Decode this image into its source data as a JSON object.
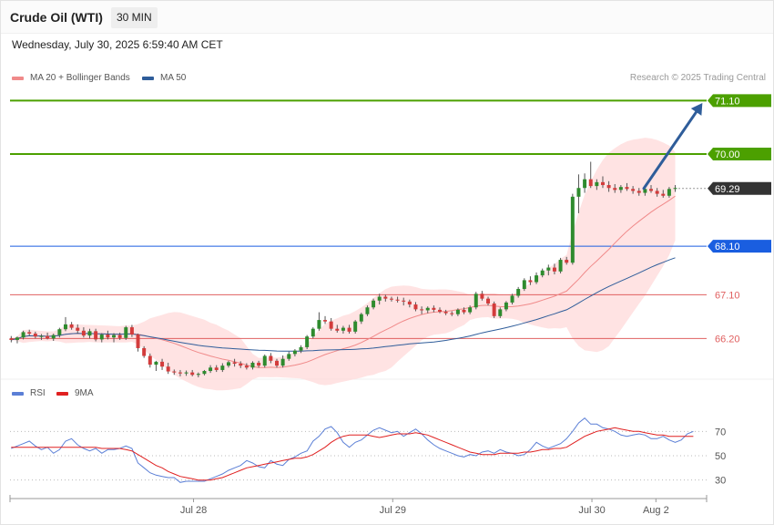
{
  "header": {
    "title": "Crude Oil (WTI)",
    "timeframe": "30 MIN"
  },
  "datetime": "Wednesday, July 30, 2025 6:59:40 AM CET",
  "copyright": "Research © 2025 Trading Central",
  "legend": {
    "main": [
      {
        "label": "MA 20 + Bollinger Bands",
        "color": "#f08a8a"
      },
      {
        "label": "MA 50",
        "color": "#2f5d9a"
      }
    ],
    "rsi": [
      {
        "label": "RSI",
        "color": "#5b7fd6"
      },
      {
        "label": "9MA",
        "color": "#e02020"
      }
    ]
  },
  "chart_data": [
    {
      "type": "candlestick",
      "instrument": "Crude Oil (WTI)",
      "interval": "30 MIN",
      "ylim": [
        65.38,
        71.37
      ],
      "xlim": [
        -0.2,
        115.2
      ],
      "x_ticks": [
        {
          "label": "Jul 28",
          "x": 30.2
        },
        {
          "label": "Jul 29",
          "x": 63.2
        },
        {
          "label": "Jul 30",
          "x": 96.2
        },
        {
          "label": "Aug 2",
          "x": 106.8
        }
      ],
      "last_price": 69.29,
      "levels": [
        {
          "label": "71.10",
          "value": 71.1,
          "color": "#4ca000",
          "kind": "resistance"
        },
        {
          "label": "70.00",
          "value": 70.0,
          "color": "#4ca000",
          "kind": "resistance"
        },
        {
          "label": "69.29",
          "value": 69.29,
          "color": "#333333",
          "kind": "last"
        },
        {
          "label": "68.10",
          "value": 68.1,
          "color": "#1a5ee0",
          "kind": "pivot"
        },
        {
          "label": "67.10",
          "value": 67.1,
          "color": "#e06060",
          "kind": "support"
        },
        {
          "label": "66.20",
          "value": 66.2,
          "color": "#e06060",
          "kind": "support"
        }
      ],
      "target_arrow": {
        "from": [
          104.8,
          69.29
        ],
        "to": [
          114.5,
          71.05
        ],
        "color": "#2f5d9a"
      },
      "candles": [
        {
          "o": 66.2,
          "h": 66.25,
          "l": 66.12,
          "c": 66.17
        },
        {
          "o": 66.17,
          "h": 66.24,
          "l": 66.1,
          "c": 66.22
        },
        {
          "o": 66.22,
          "h": 66.36,
          "l": 66.18,
          "c": 66.33
        },
        {
          "o": 66.33,
          "h": 66.38,
          "l": 66.26,
          "c": 66.3
        },
        {
          "o": 66.3,
          "h": 66.34,
          "l": 66.2,
          "c": 66.24
        },
        {
          "o": 66.24,
          "h": 66.29,
          "l": 66.17,
          "c": 66.25
        },
        {
          "o": 66.25,
          "h": 66.32,
          "l": 66.18,
          "c": 66.2
        },
        {
          "o": 66.2,
          "h": 66.3,
          "l": 66.15,
          "c": 66.27
        },
        {
          "o": 66.27,
          "h": 66.42,
          "l": 66.22,
          "c": 66.39
        },
        {
          "o": 66.39,
          "h": 66.64,
          "l": 66.35,
          "c": 66.49
        },
        {
          "o": 66.49,
          "h": 66.54,
          "l": 66.38,
          "c": 66.42
        },
        {
          "o": 66.42,
          "h": 66.49,
          "l": 66.3,
          "c": 66.36
        },
        {
          "o": 66.36,
          "h": 66.43,
          "l": 66.22,
          "c": 66.26
        },
        {
          "o": 66.26,
          "h": 66.4,
          "l": 66.2,
          "c": 66.35
        },
        {
          "o": 66.35,
          "h": 66.4,
          "l": 66.14,
          "c": 66.18
        },
        {
          "o": 66.18,
          "h": 66.31,
          "l": 66.12,
          "c": 66.28
        },
        {
          "o": 66.28,
          "h": 66.36,
          "l": 66.18,
          "c": 66.22
        },
        {
          "o": 66.22,
          "h": 66.31,
          "l": 66.12,
          "c": 66.27
        },
        {
          "o": 66.27,
          "h": 66.32,
          "l": 66.17,
          "c": 66.21
        },
        {
          "o": 66.21,
          "h": 66.46,
          "l": 66.17,
          "c": 66.43
        },
        {
          "o": 66.43,
          "h": 66.48,
          "l": 66.23,
          "c": 66.28
        },
        {
          "o": 66.28,
          "h": 66.3,
          "l": 65.93,
          "c": 66.0
        },
        {
          "o": 66.0,
          "h": 66.04,
          "l": 65.8,
          "c": 65.84
        },
        {
          "o": 65.84,
          "h": 65.89,
          "l": 65.6,
          "c": 65.66
        },
        {
          "o": 65.66,
          "h": 65.74,
          "l": 65.53,
          "c": 65.72
        },
        {
          "o": 65.72,
          "h": 65.78,
          "l": 65.55,
          "c": 65.62
        },
        {
          "o": 65.62,
          "h": 65.7,
          "l": 65.47,
          "c": 65.52
        },
        {
          "o": 65.52,
          "h": 65.56,
          "l": 65.45,
          "c": 65.5
        },
        {
          "o": 65.5,
          "h": 65.55,
          "l": 65.42,
          "c": 65.48
        },
        {
          "o": 65.48,
          "h": 65.54,
          "l": 65.43,
          "c": 65.5
        },
        {
          "o": 65.5,
          "h": 65.55,
          "l": 65.42,
          "c": 65.45
        },
        {
          "o": 65.45,
          "h": 65.5,
          "l": 65.4,
          "c": 65.47
        },
        {
          "o": 65.47,
          "h": 65.55,
          "l": 65.44,
          "c": 65.53
        },
        {
          "o": 65.53,
          "h": 65.65,
          "l": 65.49,
          "c": 65.6
        },
        {
          "o": 65.6,
          "h": 65.65,
          "l": 65.51,
          "c": 65.55
        },
        {
          "o": 65.55,
          "h": 65.69,
          "l": 65.51,
          "c": 65.64
        },
        {
          "o": 65.64,
          "h": 65.74,
          "l": 65.6,
          "c": 65.71
        },
        {
          "o": 65.71,
          "h": 65.78,
          "l": 65.62,
          "c": 65.68
        },
        {
          "o": 65.68,
          "h": 65.73,
          "l": 65.59,
          "c": 65.64
        },
        {
          "o": 65.64,
          "h": 65.69,
          "l": 65.56,
          "c": 65.6
        },
        {
          "o": 65.6,
          "h": 65.73,
          "l": 65.56,
          "c": 65.7
        },
        {
          "o": 65.7,
          "h": 65.74,
          "l": 65.6,
          "c": 65.64
        },
        {
          "o": 65.64,
          "h": 65.87,
          "l": 65.6,
          "c": 65.84
        },
        {
          "o": 65.84,
          "h": 65.9,
          "l": 65.69,
          "c": 65.74
        },
        {
          "o": 65.74,
          "h": 65.78,
          "l": 65.6,
          "c": 65.64
        },
        {
          "o": 65.64,
          "h": 65.85,
          "l": 65.6,
          "c": 65.78
        },
        {
          "o": 65.78,
          "h": 65.93,
          "l": 65.74,
          "c": 65.88
        },
        {
          "o": 65.88,
          "h": 65.98,
          "l": 65.83,
          "c": 65.95
        },
        {
          "o": 65.95,
          "h": 66.06,
          "l": 65.9,
          "c": 66.02
        },
        {
          "o": 66.02,
          "h": 66.27,
          "l": 65.98,
          "c": 66.24
        },
        {
          "o": 66.24,
          "h": 66.43,
          "l": 66.2,
          "c": 66.4
        },
        {
          "o": 66.4,
          "h": 66.74,
          "l": 66.36,
          "c": 66.58
        },
        {
          "o": 66.58,
          "h": 66.66,
          "l": 66.5,
          "c": 66.55
        },
        {
          "o": 66.55,
          "h": 66.62,
          "l": 66.36,
          "c": 66.4
        },
        {
          "o": 66.4,
          "h": 66.48,
          "l": 66.32,
          "c": 66.36
        },
        {
          "o": 66.36,
          "h": 66.46,
          "l": 66.3,
          "c": 66.42
        },
        {
          "o": 66.42,
          "h": 66.48,
          "l": 66.3,
          "c": 66.34
        },
        {
          "o": 66.34,
          "h": 66.58,
          "l": 66.3,
          "c": 66.55
        },
        {
          "o": 66.55,
          "h": 66.73,
          "l": 66.5,
          "c": 66.7
        },
        {
          "o": 66.7,
          "h": 66.88,
          "l": 66.66,
          "c": 66.84
        },
        {
          "o": 66.84,
          "h": 67.02,
          "l": 66.8,
          "c": 66.98
        },
        {
          "o": 66.98,
          "h": 67.12,
          "l": 66.9,
          "c": 67.06
        },
        {
          "o": 67.06,
          "h": 67.1,
          "l": 66.96,
          "c": 67.02
        },
        {
          "o": 67.02,
          "h": 67.06,
          "l": 66.96,
          "c": 67.0
        },
        {
          "o": 67.0,
          "h": 67.06,
          "l": 66.94,
          "c": 66.98
        },
        {
          "o": 66.98,
          "h": 67.04,
          "l": 66.88,
          "c": 66.96
        },
        {
          "o": 66.96,
          "h": 67.0,
          "l": 66.84,
          "c": 66.9
        },
        {
          "o": 66.9,
          "h": 66.95,
          "l": 66.76,
          "c": 66.8
        },
        {
          "o": 66.8,
          "h": 66.86,
          "l": 66.7,
          "c": 66.78
        },
        {
          "o": 66.78,
          "h": 66.86,
          "l": 66.72,
          "c": 66.83
        },
        {
          "o": 66.83,
          "h": 66.88,
          "l": 66.74,
          "c": 66.79
        },
        {
          "o": 66.79,
          "h": 66.84,
          "l": 66.72,
          "c": 66.75
        },
        {
          "o": 66.75,
          "h": 66.79,
          "l": 66.68,
          "c": 66.72
        },
        {
          "o": 66.72,
          "h": 66.76,
          "l": 66.66,
          "c": 66.7
        },
        {
          "o": 66.7,
          "h": 66.82,
          "l": 66.66,
          "c": 66.79
        },
        {
          "o": 66.79,
          "h": 66.84,
          "l": 66.7,
          "c": 66.74
        },
        {
          "o": 66.74,
          "h": 66.88,
          "l": 66.7,
          "c": 66.84
        },
        {
          "o": 66.84,
          "h": 67.16,
          "l": 66.8,
          "c": 67.12
        },
        {
          "o": 67.12,
          "h": 67.18,
          "l": 66.98,
          "c": 67.02
        },
        {
          "o": 67.02,
          "h": 67.06,
          "l": 66.88,
          "c": 66.92
        },
        {
          "o": 66.92,
          "h": 66.96,
          "l": 66.62,
          "c": 66.66
        },
        {
          "o": 66.66,
          "h": 66.84,
          "l": 66.62,
          "c": 66.8
        },
        {
          "o": 66.8,
          "h": 66.97,
          "l": 66.76,
          "c": 66.94
        },
        {
          "o": 66.94,
          "h": 67.12,
          "l": 66.9,
          "c": 67.08
        },
        {
          "o": 67.08,
          "h": 67.26,
          "l": 67.04,
          "c": 67.22
        },
        {
          "o": 67.22,
          "h": 67.44,
          "l": 67.18,
          "c": 67.4
        },
        {
          "o": 67.4,
          "h": 67.48,
          "l": 67.3,
          "c": 67.36
        },
        {
          "o": 67.36,
          "h": 67.56,
          "l": 67.32,
          "c": 67.5
        },
        {
          "o": 67.5,
          "h": 67.64,
          "l": 67.46,
          "c": 67.6
        },
        {
          "o": 67.6,
          "h": 67.72,
          "l": 67.5,
          "c": 67.66
        },
        {
          "o": 67.66,
          "h": 67.74,
          "l": 67.52,
          "c": 67.58
        },
        {
          "o": 67.58,
          "h": 67.86,
          "l": 67.54,
          "c": 67.82
        },
        {
          "o": 67.82,
          "h": 67.88,
          "l": 67.72,
          "c": 67.76
        },
        {
          "o": 67.76,
          "h": 69.18,
          "l": 67.72,
          "c": 69.12
        },
        {
          "o": 69.12,
          "h": 69.58,
          "l": 68.78,
          "c": 69.3
        },
        {
          "o": 69.3,
          "h": 69.6,
          "l": 69.2,
          "c": 69.48
        },
        {
          "o": 69.48,
          "h": 69.84,
          "l": 69.3,
          "c": 69.34
        },
        {
          "o": 69.34,
          "h": 69.48,
          "l": 69.26,
          "c": 69.42
        },
        {
          "o": 69.42,
          "h": 69.54,
          "l": 69.3,
          "c": 69.36
        },
        {
          "o": 69.36,
          "h": 69.44,
          "l": 69.22,
          "c": 69.3
        },
        {
          "o": 69.3,
          "h": 69.38,
          "l": 69.2,
          "c": 69.26
        },
        {
          "o": 69.26,
          "h": 69.36,
          "l": 69.2,
          "c": 69.32
        },
        {
          "o": 69.32,
          "h": 69.4,
          "l": 69.24,
          "c": 69.28
        },
        {
          "o": 69.28,
          "h": 69.34,
          "l": 69.18,
          "c": 69.24
        },
        {
          "o": 69.24,
          "h": 69.3,
          "l": 69.14,
          "c": 69.2
        },
        {
          "o": 69.2,
          "h": 69.32,
          "l": 69.14,
          "c": 69.28
        },
        {
          "o": 69.28,
          "h": 69.36,
          "l": 69.2,
          "c": 69.24
        },
        {
          "o": 69.24,
          "h": 69.3,
          "l": 69.12,
          "c": 69.18
        },
        {
          "o": 69.18,
          "h": 69.26,
          "l": 69.1,
          "c": 69.14
        },
        {
          "o": 69.14,
          "h": 69.32,
          "l": 69.1,
          "c": 69.28
        },
        {
          "o": 69.28,
          "h": 69.36,
          "l": 69.22,
          "c": 69.3
        }
      ]
    },
    {
      "type": "line",
      "title": "RSI",
      "ylim": [
        20,
        86
      ],
      "y_ticks": [
        30,
        50,
        70
      ],
      "series": [
        {
          "name": "RSI",
          "color": "#5b7fd6",
          "values": [
            56,
            58,
            60,
            62,
            58,
            55,
            57,
            52,
            55,
            62,
            64,
            59,
            56,
            54,
            56,
            52,
            55,
            55,
            56,
            58,
            56,
            44,
            40,
            36,
            34,
            33,
            32,
            32,
            28,
            29,
            29,
            29,
            29,
            31,
            33,
            35,
            38,
            40,
            42,
            46,
            44,
            41,
            40,
            46,
            43,
            42,
            47,
            49,
            52,
            54,
            62,
            66,
            72,
            74,
            69,
            61,
            57,
            61,
            63,
            67,
            71,
            73,
            71,
            69,
            70,
            66,
            69,
            72,
            68,
            63,
            59,
            56,
            54,
            52,
            50,
            49,
            51,
            50,
            53,
            54,
            52,
            55,
            53,
            52,
            50,
            51,
            55,
            61,
            58,
            56,
            58,
            60,
            64,
            70,
            77,
            81,
            76,
            76,
            73,
            72,
            70,
            67,
            66,
            67,
            68,
            67,
            64,
            64,
            66,
            63,
            61,
            63,
            68,
            70
          ]
        },
        {
          "name": "9MA",
          "color": "#e02020",
          "values": [
            57,
            57,
            57,
            57,
            57,
            57,
            57,
            57,
            57,
            57,
            57,
            57,
            57,
            57,
            57,
            56,
            56,
            56,
            56,
            55,
            54,
            51,
            48,
            45,
            42,
            40,
            37,
            35,
            33,
            32,
            31,
            30,
            30,
            30,
            31,
            32,
            34,
            36,
            38,
            40,
            41,
            42,
            43,
            44,
            45,
            46,
            47,
            48,
            48,
            49,
            51,
            54,
            57,
            61,
            64,
            66,
            67,
            67,
            67,
            67,
            66,
            65,
            66,
            67,
            68,
            68,
            68,
            69,
            68,
            67,
            65,
            63,
            61,
            59,
            57,
            55,
            53,
            52,
            51,
            51,
            51,
            52,
            52,
            52,
            52,
            53,
            53,
            54,
            55,
            55,
            56,
            56,
            57,
            60,
            63,
            66,
            68,
            70,
            71,
            72,
            73,
            72,
            71,
            70,
            70,
            69,
            68,
            67,
            67,
            66,
            66,
            66,
            66,
            66
          ]
        }
      ]
    }
  ]
}
